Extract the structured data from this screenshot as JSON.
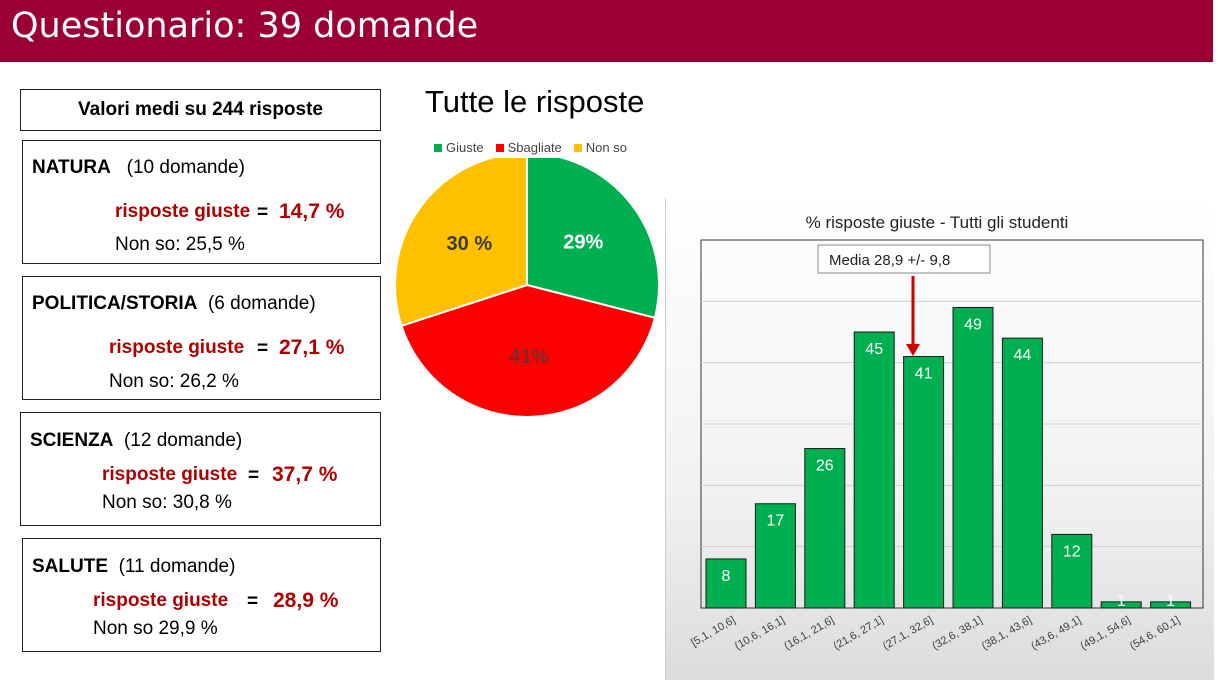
{
  "header": {
    "title": "Questionario: 39 domande"
  },
  "summary": {
    "title": "Valori medi su 244 risposte"
  },
  "categories": [
    {
      "name": "NATURA",
      "questions": "(10 domande)",
      "giuste_label": "risposte giuste",
      "eq": "=",
      "giuste_value": "14,7 %",
      "nonso": "Non so: 25,5 %"
    },
    {
      "name": "POLITICA/STORIA",
      "questions": "(6 domande)",
      "giuste_label": "risposte giuste",
      "eq": "=",
      "giuste_value": "27,1 %",
      "nonso": "Non so: 26,2 %"
    },
    {
      "name": "SCIENZA",
      "questions": "(12 domande)",
      "giuste_label": "risposte giuste",
      "eq": "=",
      "giuste_value": "37,7 %",
      "nonso": "Non so: 30,8 %"
    },
    {
      "name": "SALUTE",
      "questions": "(11 domande)",
      "giuste_label": "risposte giuste",
      "eq": "=",
      "giuste_value": "28,9 %",
      "nonso": "Non so 29,9 %"
    }
  ],
  "chart_data": [
    {
      "type": "pie",
      "title": "Tutte le risposte",
      "categories": [
        "Giuste",
        "Sbagliate",
        "Non so"
      ],
      "values": [
        29,
        41,
        30
      ],
      "labels": [
        "29%",
        "41%",
        "30 %"
      ],
      "colors": [
        "#00b050",
        "#ff0000",
        "#ffc000"
      ],
      "legend": "top"
    },
    {
      "type": "bar",
      "title": "% risposte giuste - Tutti gli studenti",
      "categories": [
        "[5,1, 10,6]",
        "(10,6, 16,1]",
        "(16,1, 21,6]",
        "(21,6, 27,1]",
        "(27,1, 32,6]",
        "(32,6, 38,1]",
        "(38,1, 43,6]",
        "(43,6, 49,1]",
        "(49,1, 54,6]",
        "(54,6, 60,1]"
      ],
      "values": [
        8,
        17,
        26,
        45,
        41,
        49,
        44,
        12,
        1,
        1
      ],
      "ylim": [
        0,
        60
      ],
      "grid": true,
      "bar_color": "#00b050",
      "annotation": "Media  28,9 +/-  9,8"
    }
  ]
}
